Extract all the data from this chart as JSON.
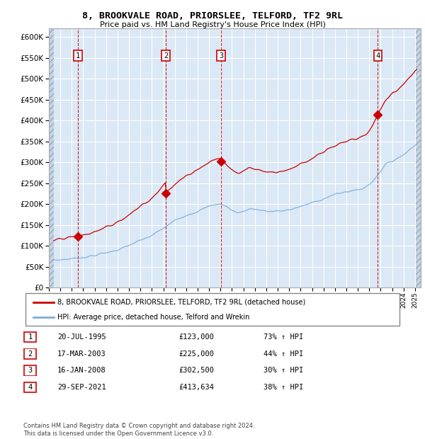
{
  "title": "8, BROOKVALE ROAD, PRIORSLEE, TELFORD, TF2 9RL",
  "subtitle": "Price paid vs. HM Land Registry's House Price Index (HPI)",
  "purchases": [
    {
      "num": 1,
      "date_str": "20-JUL-1995",
      "date_x": 1995.54,
      "price": 123000,
      "pct": "73% ↑ HPI"
    },
    {
      "num": 2,
      "date_str": "17-MAR-2003",
      "date_x": 2003.21,
      "price": 225000,
      "pct": "44% ↑ HPI"
    },
    {
      "num": 3,
      "date_str": "16-JAN-2008",
      "date_x": 2008.04,
      "price": 302500,
      "pct": "30% ↑ HPI"
    },
    {
      "num": 4,
      "date_str": "29-SEP-2021",
      "date_x": 2021.75,
      "price": 413634,
      "pct": "38% ↑ HPI"
    }
  ],
  "hpi_line_color": "#7aaddc",
  "price_line_color": "#cc0000",
  "background_color": "#dbe8f5",
  "grid_color": "#ffffff",
  "ylim": [
    0,
    620000
  ],
  "yticks": [
    0,
    50000,
    100000,
    150000,
    200000,
    250000,
    300000,
    350000,
    400000,
    450000,
    500000,
    550000,
    600000
  ],
  "xlim": [
    1993.0,
    2025.5
  ],
  "xticks": [
    1993,
    1994,
    1995,
    1996,
    1997,
    1998,
    1999,
    2000,
    2001,
    2002,
    2003,
    2004,
    2005,
    2006,
    2007,
    2008,
    2009,
    2010,
    2011,
    2012,
    2013,
    2014,
    2015,
    2016,
    2017,
    2018,
    2019,
    2020,
    2021,
    2022,
    2023,
    2024,
    2025
  ],
  "footnote": "Contains HM Land Registry data © Crown copyright and database right 2024.\nThis data is licensed under the Open Government Licence v3.0.",
  "legend_house_label": "8, BROOKVALE ROAD, PRIORSLEE, TELFORD, TF2 9RL (detached house)",
  "legend_hpi_label": "HPI: Average price, detached house, Telford and Wrekin"
}
